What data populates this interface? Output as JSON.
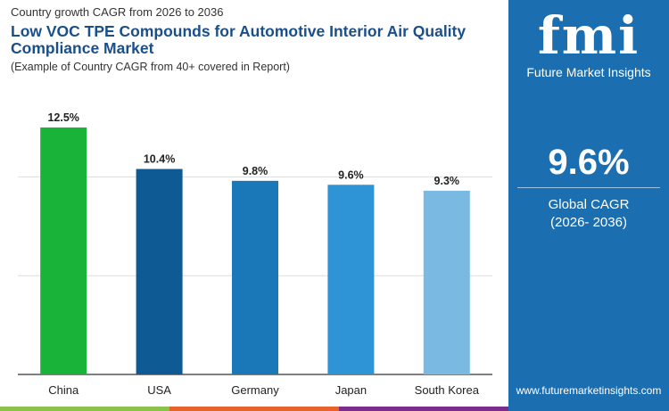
{
  "header": {
    "subtitle": "Country growth CAGR from 2026 to 2036",
    "title": "Low VOC TPE Compounds for Automotive Interior Air Quality Compliance Market",
    "note": "(Example of Country CAGR from 40+ covered in Report)"
  },
  "panel": {
    "logo": "fmi",
    "logo_text": "Future Market Insights",
    "cagr_value": "9.6%",
    "cagr_label": "Global CAGR",
    "cagr_period": "(2026- 2036)",
    "url": "www.futuremarketinsights.com",
    "bg_color": "#1b6eb0"
  },
  "chart_data": {
    "type": "bar",
    "categories": [
      "China",
      "USA",
      "Germany",
      "Japan",
      "South Korea"
    ],
    "values": [
      12.5,
      10.4,
      9.8,
      9.6,
      9.3
    ],
    "data_labels": [
      "12.5%",
      "10.4%",
      "9.8%",
      "9.6%",
      "9.3%"
    ],
    "colors": [
      "#19b33a",
      "#0d5a94",
      "#1b78b8",
      "#2e94d6",
      "#79b9e2"
    ],
    "ylim": [
      0,
      15
    ],
    "gridlines": [
      5,
      10
    ],
    "grid": true
  },
  "stripes": [
    "#8bc34a",
    "#e8622c",
    "#7b2d8c"
  ]
}
